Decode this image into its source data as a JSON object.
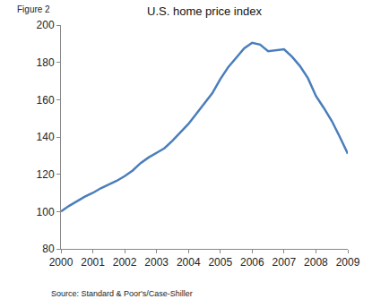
{
  "chart_data": {
    "type": "line",
    "title": "U.S. home price index",
    "annotations": [
      "Figure 2",
      "Source: Standard & Poor's/Case-Shiller"
    ],
    "x": [
      2000,
      2000.25,
      2000.5,
      2000.75,
      2001,
      2001.25,
      2001.5,
      2001.75,
      2002,
      2002.25,
      2002.5,
      2002.75,
      2003,
      2003.25,
      2003.5,
      2003.75,
      2004,
      2004.25,
      2004.5,
      2004.75,
      2005,
      2005.25,
      2005.5,
      2005.75,
      2006,
      2006.25,
      2006.5,
      2006.75,
      2007,
      2007.25,
      2007.5,
      2007.75,
      2008,
      2008.25,
      2008.5,
      2008.75,
      2009
    ],
    "values": [
      100,
      103,
      105.5,
      108,
      110,
      112.5,
      114.5,
      116.5,
      119,
      122,
      126,
      129,
      131.5,
      134,
      138,
      142.5,
      147,
      152.5,
      158,
      163.5,
      171,
      177.5,
      182.5,
      187.5,
      190.5,
      189.5,
      186,
      186.5,
      187,
      183,
      178,
      171.5,
      162,
      155.5,
      148.5,
      140,
      131
    ],
    "color": "#4a7ebb",
    "xlim": [
      2000,
      2009
    ],
    "xticks": [
      2000,
      2001,
      2002,
      2003,
      2004,
      2005,
      2006,
      2007,
      2008,
      2009
    ],
    "ylim": [
      80,
      200
    ],
    "yticks": [
      80,
      100,
      120,
      140,
      160,
      180,
      200
    ],
    "grid": false
  }
}
